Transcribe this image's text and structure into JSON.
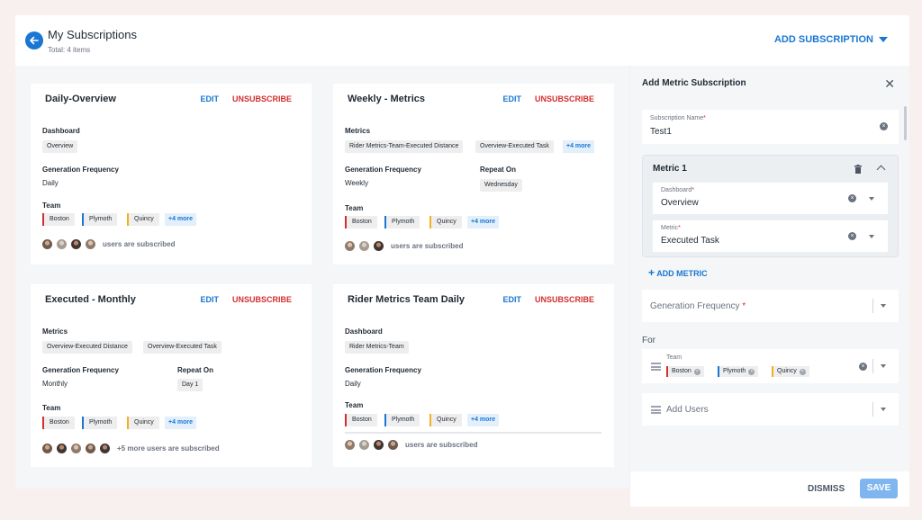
{
  "header": {
    "title": "My Subscriptions",
    "subtitle": "Total: 4 items",
    "add_subscription_label": "ADD SUBSCRIPTION"
  },
  "cards": [
    {
      "title": "Daily-Overview",
      "edit_label": "EDIT",
      "unsubscribe_label": "UNSUBSCRIBE",
      "field1_label": "Dashboard",
      "field1_chips": [
        "Overview"
      ],
      "frequency_label": "Generation Frequency",
      "frequency_value": "Daily",
      "team_label": "Team",
      "teams": [
        "Boston",
        "Plymoth",
        "Quincy"
      ],
      "teams_more": "+4 more",
      "subscribed_text": "users are subscribed"
    },
    {
      "title": "Weekly - Metrics",
      "edit_label": "EDIT",
      "unsubscribe_label": "UNSUBSCRIBE",
      "field1_label": "Metrics",
      "field1_chips": [
        "Rider Metrics-Team-Executed Distance",
        "Overview-Executed Task"
      ],
      "field1_more": "+4 more",
      "frequency_label": "Generation Frequency",
      "frequency_value": "Weekly",
      "repeat_label": "Repeat On",
      "repeat_value": "Wednesday",
      "team_label": "Team",
      "teams": [
        "Boston",
        "Plymoth",
        "Quincy"
      ],
      "teams_more": "+4 more",
      "subscribed_text": "users are subscribed"
    },
    {
      "title": "Executed - Monthly",
      "edit_label": "EDIT",
      "unsubscribe_label": "UNSUBSCRIBE",
      "field1_label": "Metrics",
      "field1_chips": [
        "Overview-Executed Distance",
        "Overview-Executed Task"
      ],
      "frequency_label": "Generation Frequency",
      "frequency_value": "Monthly",
      "repeat_label": "Repeat On",
      "repeat_value": "Day 1",
      "team_label": "Team",
      "teams": [
        "Boston",
        "Plymoth",
        "Quincy"
      ],
      "teams_more": "+4 more",
      "subscribed_text": "+5 more users are subscribed"
    },
    {
      "title": "Rider Metrics Team Daily",
      "edit_label": "EDIT",
      "unsubscribe_label": "UNSUBSCRIBE",
      "field1_label": "Dashboard",
      "field1_chips": [
        "Rider Metrics-Team"
      ],
      "frequency_label": "Generation Frequency",
      "frequency_value": "Daily",
      "team_label": "Team",
      "teams": [
        "Boston",
        "Plymoth",
        "Quincy"
      ],
      "teams_more": "+4 more",
      "subscribed_text": "users are subscribed"
    }
  ],
  "panel": {
    "title": "Add Metric Subscription",
    "subscription_name_label": "Subscription Name",
    "subscription_name_value": "Test1",
    "metric_title": "Metric 1",
    "dashboard_label": "Dashboard",
    "dashboard_value": "Overview",
    "metric_label": "Metric",
    "metric_value": "Executed Task",
    "add_metric_label": "ADD METRIC",
    "generation_frequency_placeholder": "Generation Frequency",
    "for_label": "For",
    "team_label": "Team",
    "team_chips": [
      "Boston",
      "Plymoth",
      "Quincy"
    ],
    "add_users_placeholder": "Add Users",
    "dismiss_label": "DISMISS",
    "save_label": "SAVE"
  },
  "colors": {
    "accent": "#1976d2",
    "danger": "#d32f2f",
    "team_boston": "#d32f2f",
    "team_plymoth": "#1976d2",
    "team_quincy": "#f2b01e"
  },
  "icons": [
    "back-arrow-icon",
    "dropdown-triangle-icon",
    "close-icon",
    "trash-icon",
    "chevron-up-icon",
    "plus-icon",
    "list-icon",
    "clear-icon"
  ]
}
